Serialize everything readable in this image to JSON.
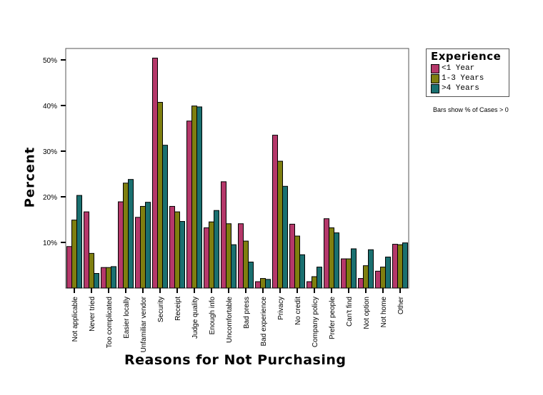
{
  "chart_data": {
    "type": "bar",
    "title": "",
    "xlabel": "Reasons for Not Purchasing",
    "ylabel": "Percent",
    "ylim": [
      0,
      52
    ],
    "yticks": [
      "10%",
      "20%",
      "30%",
      "40%",
      "50%"
    ],
    "grid": false,
    "legend_position": "right",
    "legend_title": "Experience",
    "note": "Bars show % of Cases > 0",
    "categories": [
      "Not applicable",
      "Never tried",
      "Too complicated",
      "Easier locally",
      "Unfamiliar vendor",
      "Security",
      "Receipt",
      "Judge quality",
      "Enough info",
      "Uncomfortable",
      "Bad press",
      "Bad experience",
      "Privacy",
      "No credit",
      "Company policy",
      "Prefer people",
      "Can't find",
      "Not option",
      "Not home",
      "Other"
    ],
    "series": [
      {
        "name": "<1 Year",
        "color": "#b5386a",
        "values": [
          9.1,
          16.7,
          4.5,
          18.9,
          15.5,
          50.4,
          17.9,
          36.6,
          13.2,
          23.3,
          14.1,
          1.4,
          33.5,
          14.0,
          1.4,
          15.2,
          6.4,
          2.1,
          3.7,
          9.6
        ]
      },
      {
        "name": "1-3 Years",
        "color": "#7f7f10",
        "values": [
          14.9,
          7.6,
          4.5,
          23.0,
          17.9,
          40.7,
          16.7,
          39.9,
          14.5,
          14.1,
          10.3,
          2.1,
          27.8,
          11.4,
          2.5,
          13.2,
          6.4,
          4.9,
          4.6,
          9.5
        ]
      },
      {
        "name": ">4 Years",
        "color": "#1a7070",
        "values": [
          20.3,
          3.2,
          4.7,
          23.8,
          18.8,
          31.3,
          14.6,
          39.7,
          17.0,
          9.5,
          5.7,
          1.9,
          22.3,
          7.3,
          4.6,
          12.1,
          8.6,
          8.4,
          6.8,
          9.9
        ]
      }
    ]
  },
  "legend": {
    "title": "Experience",
    "items": [
      {
        "label": "<1 Year",
        "color": "#b5386a"
      },
      {
        "label": "1-3 Years",
        "color": "#7f7f10"
      },
      {
        "label": ">4 Years",
        "color": "#1a7070"
      }
    ]
  },
  "note": "Bars show % of Cases > 0",
  "axis": {
    "xlabel": "Reasons for Not Purchasing",
    "ylabel": "Percent"
  }
}
